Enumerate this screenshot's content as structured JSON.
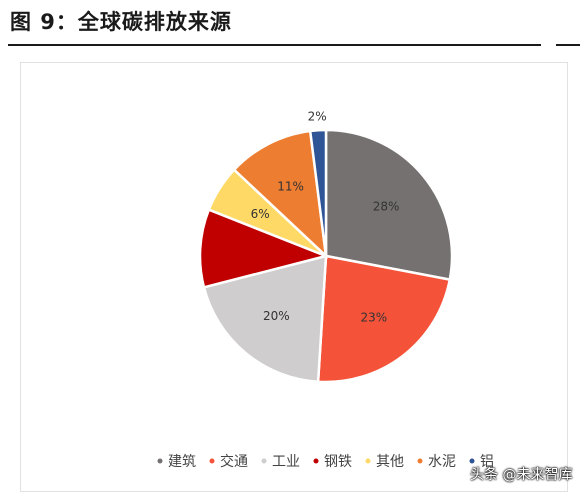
{
  "page": {
    "title": "图 9：全球碳排放来源"
  },
  "watermark": "头条 @未来智库",
  "chart_data": {
    "type": "pie",
    "title": "",
    "labels": [
      "建筑",
      "交通",
      "工业",
      "钢铁",
      "其他",
      "水泥",
      "铝"
    ],
    "values": [
      28,
      23,
      20,
      10,
      6,
      11,
      2
    ],
    "value_labels": [
      "28%",
      "23%",
      "20%",
      "",
      "6%",
      "11%",
      "2%"
    ],
    "colors": [
      "#757171",
      "#f4533a",
      "#cfcdcd",
      "#c00000",
      "#ffd966",
      "#ed7d31",
      "#2f5597"
    ],
    "start": "12 o'clock",
    "direction": "clockwise",
    "legend_position": "bottom"
  }
}
